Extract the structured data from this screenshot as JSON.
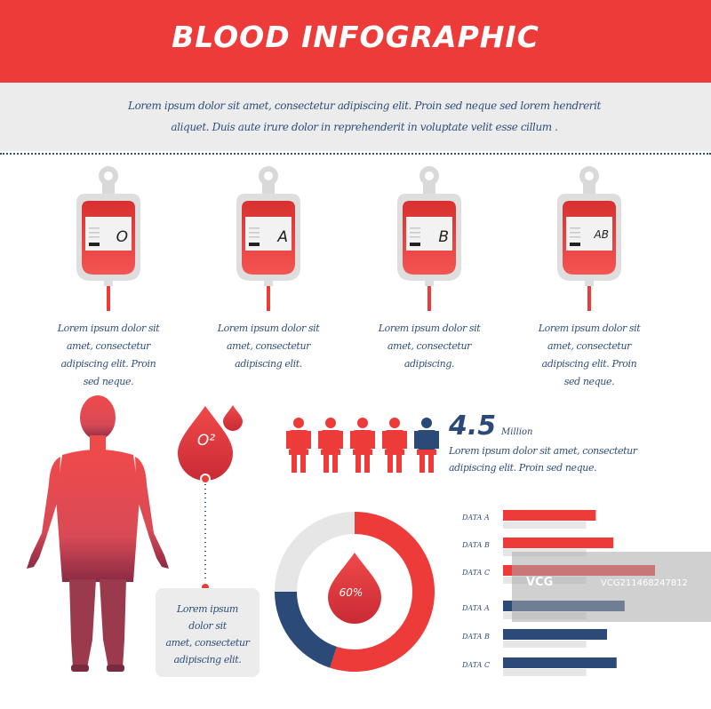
{
  "header": {
    "title": "BLOOD INFOGRAPHIC"
  },
  "intro": {
    "line1": "Lorem ipsum dolor sit amet, consectetur adipiscing elit. Proin sed neque sed lorem hendrerit",
    "line2": "aliquet. Duis aute irure dolor in reprehenderit in voluptate velit esse cillum ."
  },
  "blood_types": [
    {
      "type": "O",
      "caption": [
        "Lorem ipsum dolor sit",
        "amet, consectetur",
        "adipiscing elit. Proin",
        "sed neque."
      ]
    },
    {
      "type": "A",
      "caption": [
        "Lorem ipsum dolor sit",
        "amet, consectetur",
        "adipiscing elit."
      ]
    },
    {
      "type": "B",
      "caption": [
        "Lorem ipsum dolor sit",
        "amet, consectetur",
        "adipiscing."
      ]
    },
    {
      "type": "AB",
      "caption": [
        "Lorem ipsum dolor sit",
        "amet, consectetur",
        "adipiscing elit. Proin",
        "sed neque."
      ]
    }
  ],
  "oxygen": {
    "label": "O²"
  },
  "stat": {
    "value": "4.5",
    "unit": "Million",
    "desc_line1": "Lorem ipsum dolor sit amet, consectetur",
    "desc_line2": "adipiscing elit. Proin sed neque."
  },
  "people_icons": {
    "total": 5,
    "highlighted_index": 4,
    "highlight_fill_fraction": 0.5
  },
  "note": {
    "lines": [
      "Lorem ipsum",
      "dolor sit",
      "amet, consectetur",
      "adipiscing elit."
    ]
  },
  "donut": {
    "label": "60%",
    "segments": [
      0.55,
      0.2,
      0.25
    ]
  },
  "chart_data": {
    "type": "bar",
    "categories": [
      "DATA A",
      "DATA B",
      "DATA C",
      "DATA A",
      "DATA B",
      "DATA C"
    ],
    "series": [
      {
        "values": [
          58,
          69,
          95,
          0,
          0,
          0
        ],
        "color": "#ed3b3a"
      },
      {
        "values": [
          0,
          0,
          0,
          76,
          65,
          71
        ],
        "color": "#2c4a78"
      },
      {
        "values": [
          52,
          52,
          52,
          52,
          52,
          52
        ],
        "color": "#e6e6e6"
      }
    ]
  },
  "watermark": {
    "logo": "VCG",
    "text": "VCG211468247812"
  },
  "colors": {
    "red": "#ed3b3a",
    "navy": "#2c4a78",
    "text_navy": "#2f4f7c",
    "light_gray": "#ececec"
  }
}
